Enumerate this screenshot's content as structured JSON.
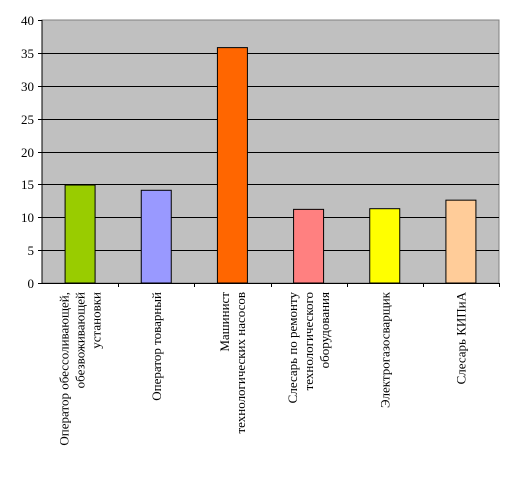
{
  "chart_data": {
    "type": "bar",
    "categories": [
      [
        "Оператор обессоливающей,",
        "обезвоживающей",
        "установки"
      ],
      [
        "Оператор товарный"
      ],
      [
        "Машинист",
        "технологических насосов"
      ],
      [
        "Слесарь по ремонту",
        "технологического",
        "оборудования"
      ],
      [
        "Электрогазосварщик"
      ],
      [
        "Слесарь КИПиА"
      ]
    ],
    "values": [
      14.9,
      14.1,
      35.8,
      11.2,
      11.3,
      12.6
    ],
    "colors": [
      "#99cc00",
      "#9999ff",
      "#ff6600",
      "#ff8080",
      "#ffff00",
      "#ffcc99"
    ],
    "ylim": [
      0,
      40
    ],
    "yticks": [
      0,
      5,
      10,
      15,
      20,
      25,
      30,
      35,
      40
    ],
    "plot_background": "#c0c0c0",
    "grid": true,
    "legend": "none",
    "title": "",
    "xlabel": "",
    "ylabel": ""
  }
}
